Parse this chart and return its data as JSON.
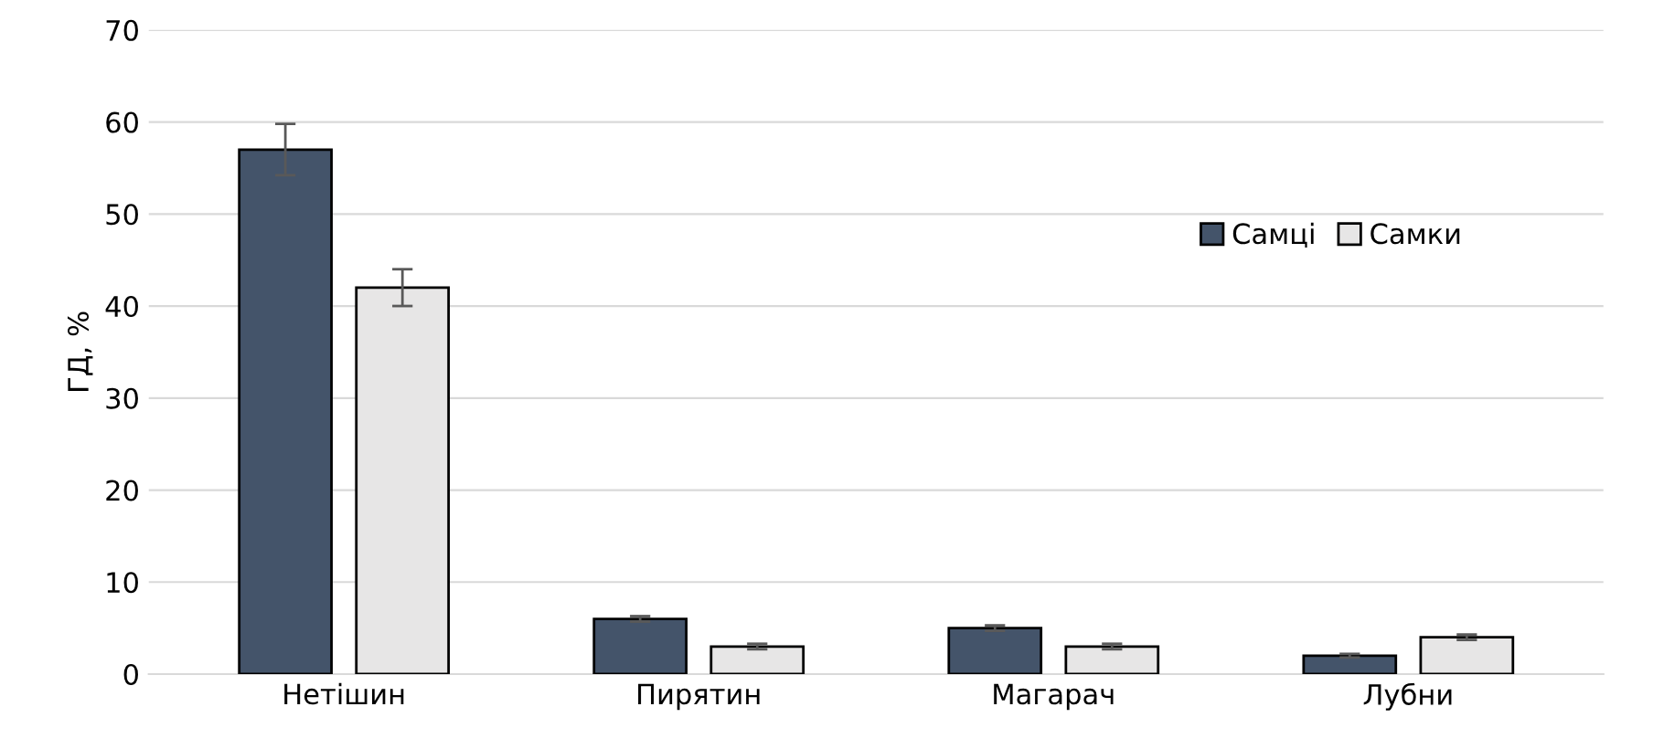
{
  "chart_data": {
    "type": "bar",
    "ylabel": "ГД, %",
    "categories": [
      "Нетішин",
      "Пирятин",
      "Магарач",
      "Лубни"
    ],
    "series": [
      {
        "name": "Самці",
        "color": "#44546a",
        "values": [
          57,
          6,
          5,
          2
        ],
        "errors": [
          2.8,
          0.3,
          0.3,
          0.2
        ]
      },
      {
        "name": "Самки",
        "color": "#e7e6e6",
        "values": [
          42,
          3,
          3,
          4
        ],
        "errors": [
          2,
          0.3,
          0.3,
          0.3
        ]
      }
    ],
    "ylim": [
      0,
      70
    ],
    "yticks": [
      0,
      10,
      20,
      30,
      40,
      50,
      60,
      70
    ],
    "grid": "y",
    "legend": "right"
  }
}
